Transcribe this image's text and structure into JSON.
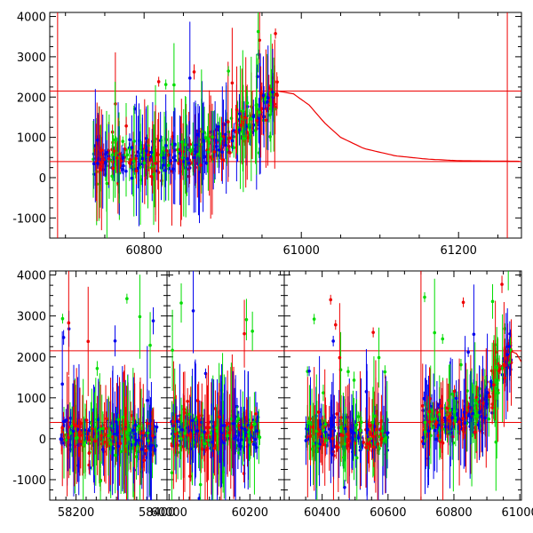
{
  "chart_data": [
    {
      "type": "scatter",
      "title": "",
      "xlabel": "",
      "ylabel": "",
      "xlim": [
        60680,
        61280
      ],
      "ylim": [
        -1500,
        4100
      ],
      "grid": false,
      "x_ticks": [
        60800,
        61000,
        61200
      ],
      "y_ticks": [
        -1000,
        0,
        1000,
        2000,
        3000,
        4000
      ],
      "markers": "points with vertical error bars",
      "series_colors": [
        "#0000ee",
        "#00dd00",
        "#ee0000"
      ],
      "model_color": "#ee0000",
      "hlines": [
        2150,
        400
      ],
      "vlines": [
        60690,
        61262
      ],
      "data_x_range": [
        60735,
        60970
      ],
      "trend": {
        "x": [
          60740,
          60860,
          60900,
          60940,
          60970
        ],
        "y": [
          400,
          550,
          900,
          1500,
          2150
        ]
      },
      "model_curve": {
        "x": [
          60970,
          60990,
          61010,
          61030,
          61050,
          61080,
          61120,
          61160,
          61200,
          61280
        ],
        "y": [
          2150,
          2080,
          1800,
          1350,
          1000,
          720,
          540,
          460,
          420,
          405
        ]
      }
    },
    {
      "type": "scatter",
      "title": "",
      "xlabel": "",
      "ylabel": "",
      "grid": false,
      "y_ticks": [
        -1000,
        0,
        1000,
        2000,
        3000,
        4000
      ],
      "ylim": [
        -1500,
        4100
      ],
      "series_colors": [
        "#0000ee",
        "#00dd00",
        "#ee0000"
      ],
      "hlines": [
        2150,
        400
      ],
      "segments": [
        {
          "xlim": [
            58135,
            58425
          ],
          "x_ticks": [
            58200,
            58400
          ],
          "data_x_range": [
            58160,
            58400
          ],
          "center": 100,
          "spread": 300
        },
        {
          "xlim": [
            59995,
            60285
          ],
          "x_ticks": [
            60000,
            60200
          ],
          "data_x_range": [
            60005,
            60225
          ],
          "center": 150,
          "spread": 300
        },
        {
          "xlim": [
            60285,
            61005
          ],
          "x_ticks": [
            60400,
            60600,
            60800,
            61000
          ],
          "data_x_range": [
            60350,
            60975
          ],
          "center": 100,
          "spread": 300,
          "vline": 60700
        }
      ]
    }
  ]
}
